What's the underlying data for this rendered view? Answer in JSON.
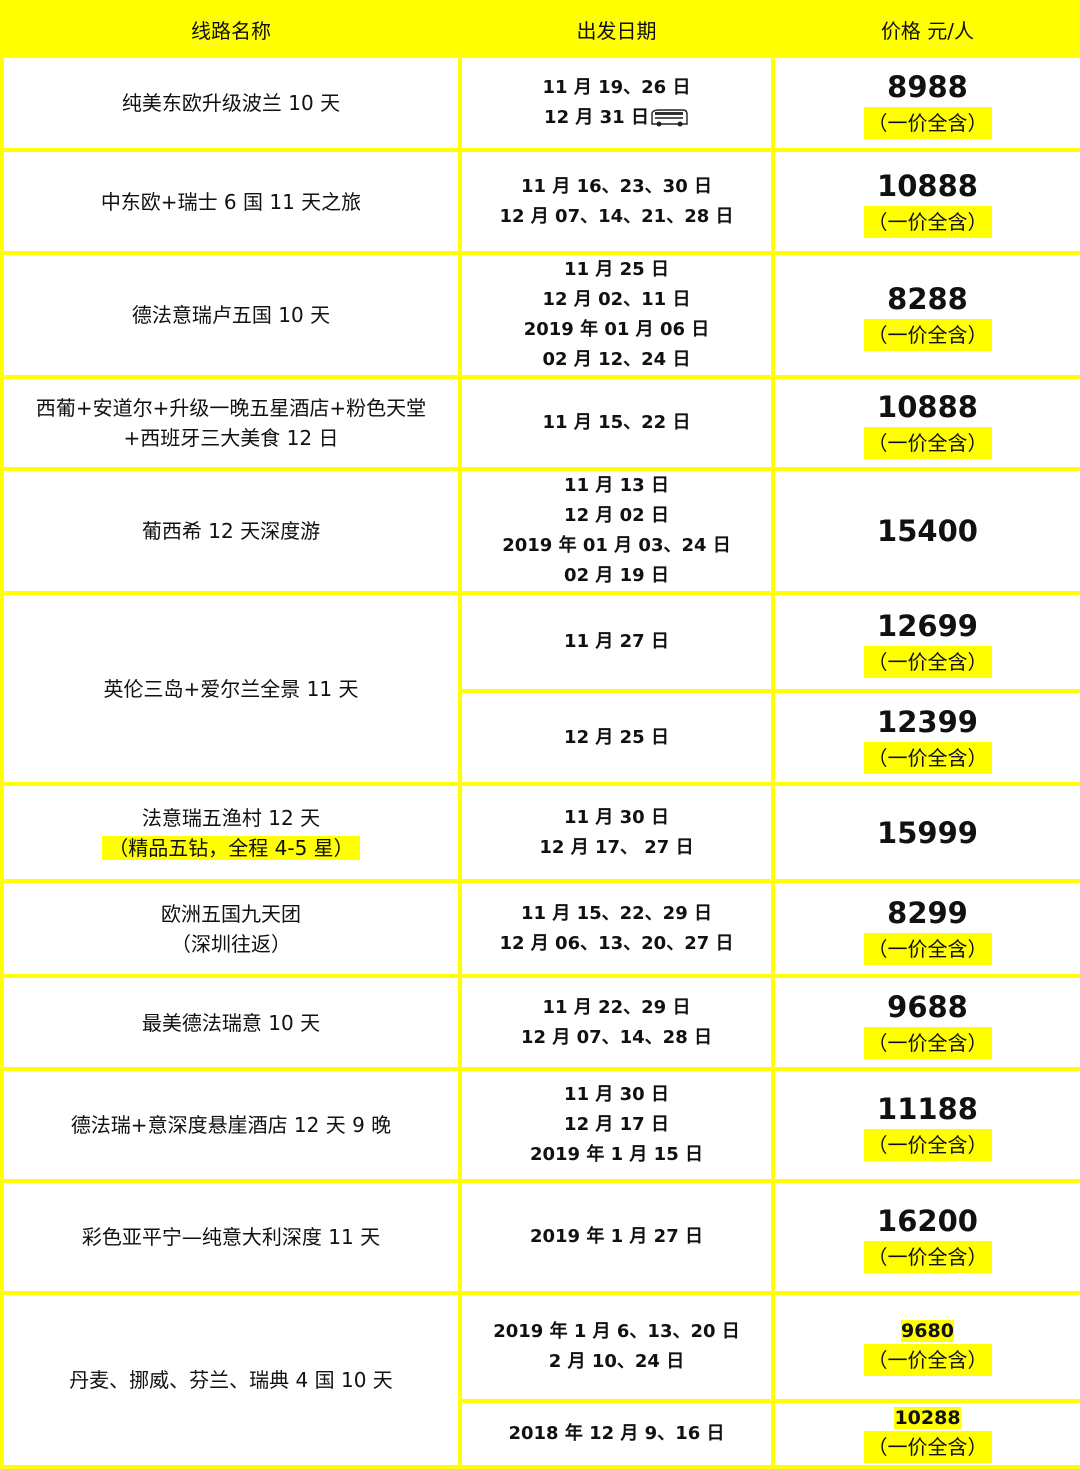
{
  "header": {
    "route": "线路名称",
    "departure": "出发日期",
    "price": "价格  元/人"
  },
  "colors": {
    "border": "#ffff00",
    "highlight": "#ffff00"
  },
  "routes": [
    {
      "name": [
        "纯美东欧升级波兰 10 天"
      ],
      "departures": [
        {
          "dates": [
            "11 月 19、26 日",
            "12 月 31 日"
          ],
          "bus_icon": true,
          "price": "8988",
          "note": "（一价全含）"
        }
      ]
    },
    {
      "name": [
        "中东欧+瑞士 6 国 11 天之旅"
      ],
      "departures": [
        {
          "dates": [
            "11 月 16、23、30 日",
            "12 月 07、14、21、28 日"
          ],
          "price": "10888",
          "note": "（一价全含）"
        }
      ]
    },
    {
      "name": [
        "德法意瑞卢五国 10 天"
      ],
      "departures": [
        {
          "dates": [
            "11 月 25 日",
            "12 月 02、11 日",
            "2019 年 01 月 06 日",
            "02 月 12、24 日"
          ],
          "price": "8288",
          "note": "（一价全含）"
        }
      ]
    },
    {
      "name": [
        "西葡+安道尔+升级一晚五星酒店+粉色天堂",
        "+西班牙三大美食  12 日"
      ],
      "departures": [
        {
          "dates": [
            "11 月 15、22 日"
          ],
          "price": "10888",
          "note": "（一价全含）"
        }
      ]
    },
    {
      "name": [
        "葡西希 12 天深度游"
      ],
      "departures": [
        {
          "dates": [
            "11 月 13 日",
            "12 月 02 日",
            "2019 年 01 月 03、24 日",
            "02 月 19 日"
          ],
          "price": "15400"
        }
      ]
    },
    {
      "name": [
        "英伦三岛+爱尔兰全景 11 天"
      ],
      "departures": [
        {
          "dates": [
            "11 月 27 日"
          ],
          "price": "12699",
          "note": "（一价全含）"
        },
        {
          "dates": [
            "12 月 25 日"
          ],
          "price": "12399",
          "note": "（一价全含）"
        }
      ]
    },
    {
      "name": [
        "法意瑞五渔村 12 天"
      ],
      "highlight_note": "（精品五钻，全程 4-5 星）",
      "departures": [
        {
          "dates": [
            "11 月 30 日",
            "12 月 17、 27 日"
          ],
          "price": "15999"
        }
      ]
    },
    {
      "name": [
        "欧洲五国九天团",
        "（深圳往返）"
      ],
      "departures": [
        {
          "dates": [
            "11 月 15、22、29 日",
            "12 月 06、13、20、27 日"
          ],
          "price": "8299",
          "note": "（一价全含）"
        }
      ]
    },
    {
      "name": [
        "最美德法瑞意 10 天"
      ],
      "departures": [
        {
          "dates": [
            "11 月 22、29 日",
            "12 月 07、14、28 日"
          ],
          "price": "9688",
          "note": "（一价全含）"
        }
      ]
    },
    {
      "name": [
        "德法瑞+意深度悬崖酒店 12 天 9 晚"
      ],
      "departures": [
        {
          "dates": [
            "11 月 30 日",
            "12 月 17 日",
            "2019 年 1 月 15 日"
          ],
          "price": "11188",
          "note": "（一价全含）"
        }
      ]
    },
    {
      "name": [
        "彩色亚平宁—纯意大利深度 11 天"
      ],
      "departures": [
        {
          "dates": [
            "2019 年 1 月 27 日"
          ],
          "price": "16200",
          "note": "（一价全含）"
        }
      ]
    },
    {
      "name": [
        "丹麦、挪威、芬兰、瑞典 4 国 10 天"
      ],
      "departures": [
        {
          "dates": [
            "2019 年 1 月 6、13、20 日",
            "2 月 10、24 日"
          ],
          "price": "9680",
          "price_small": true,
          "note": "（一价全含）"
        },
        {
          "dates": [
            "2018 年 12 月 9、16 日"
          ],
          "price": "10288",
          "price_small": true,
          "note": "（一价全含）"
        }
      ]
    }
  ]
}
